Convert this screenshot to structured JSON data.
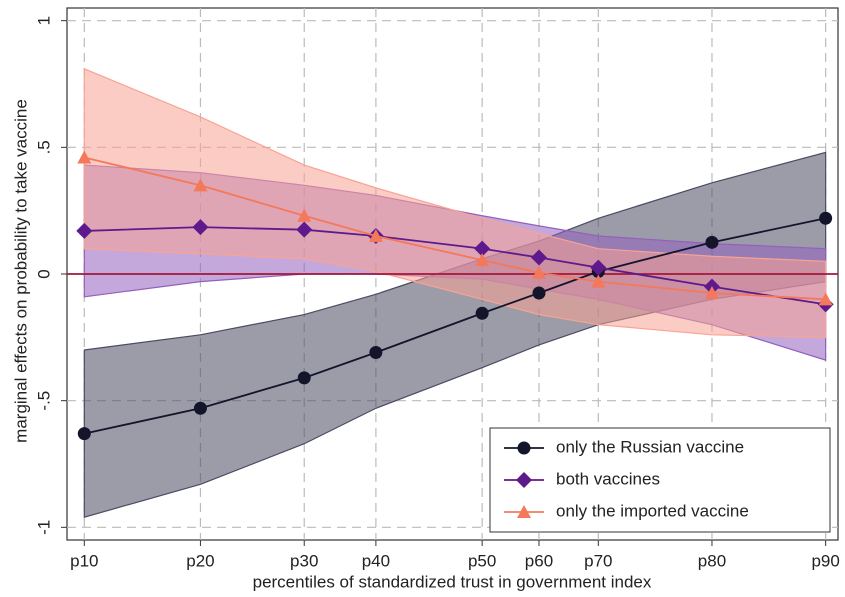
{
  "chart_data": {
    "type": "line",
    "xlabel": "percentiles of standardized trust in government index",
    "ylabel": "marginal effects on probability to take vaccine",
    "x": [
      -1.5,
      -1.03,
      -0.61,
      -0.32,
      0.11,
      0.34,
      0.58,
      1.04,
      1.5
    ],
    "xlim": [
      -1.57,
      1.55
    ],
    "xticks": [
      {
        "value": -1.5,
        "label": "p10"
      },
      {
        "value": -1.03,
        "label": "p20"
      },
      {
        "value": -0.61,
        "label": "p30"
      },
      {
        "value": -0.32,
        "label": "p40"
      },
      {
        "value": 0.11,
        "label": "p50"
      },
      {
        "value": 0.34,
        "label": "p60"
      },
      {
        "value": 0.58,
        "label": "p70"
      },
      {
        "value": 1.04,
        "label": "p80"
      },
      {
        "value": 1.5,
        "label": "p90"
      }
    ],
    "ylim": [
      -1.05,
      1.05
    ],
    "yticks": [
      -1,
      {
        "value": -0.5,
        "label": "-.5"
      },
      0,
      {
        "value": 0.5,
        "label": ".5"
      },
      1
    ],
    "grid": true,
    "reference_line": {
      "y": 0,
      "color": "#a3173a"
    },
    "legend": "lower right",
    "series": [
      {
        "name": "only the Russian vaccine",
        "color": "#14142b",
        "band_color": "#4b4b62",
        "marker": "circle",
        "values": [
          -0.63,
          -0.53,
          -0.41,
          -0.31,
          -0.155,
          -0.075,
          0.01,
          0.125,
          0.22
        ],
        "lower": [
          -0.96,
          -0.83,
          -0.67,
          -0.53,
          -0.37,
          -0.28,
          -0.2,
          -0.1,
          -0.03
        ],
        "upper": [
          -0.3,
          -0.24,
          -0.16,
          -0.08,
          0.06,
          0.13,
          0.22,
          0.36,
          0.48
        ]
      },
      {
        "name": "both vaccines",
        "color": "#5e1a8c",
        "band_color": "#9360bd",
        "marker": "diamond",
        "values": [
          0.17,
          0.185,
          0.175,
          0.15,
          0.1,
          0.065,
          0.025,
          -0.05,
          -0.12
        ],
        "lower": [
          -0.09,
          -0.03,
          0.0,
          0.0,
          -0.02,
          -0.06,
          -0.1,
          -0.2,
          -0.34
        ],
        "upper": [
          0.43,
          0.4,
          0.35,
          0.31,
          0.23,
          0.19,
          0.15,
          0.12,
          0.1
        ]
      },
      {
        "name": "only the imported vaccine",
        "color": "#f4785a",
        "band_color": "#f8a394",
        "marker": "triangle",
        "values": [
          0.46,
          0.35,
          0.23,
          0.15,
          0.055,
          0.005,
          -0.03,
          -0.075,
          -0.1
        ],
        "lower": [
          0.1,
          0.08,
          0.06,
          0.01,
          -0.1,
          -0.16,
          -0.2,
          -0.24,
          -0.25
        ],
        "upper": [
          0.81,
          0.62,
          0.43,
          0.34,
          0.22,
          0.16,
          0.1,
          0.07,
          0.05
        ]
      }
    ]
  }
}
